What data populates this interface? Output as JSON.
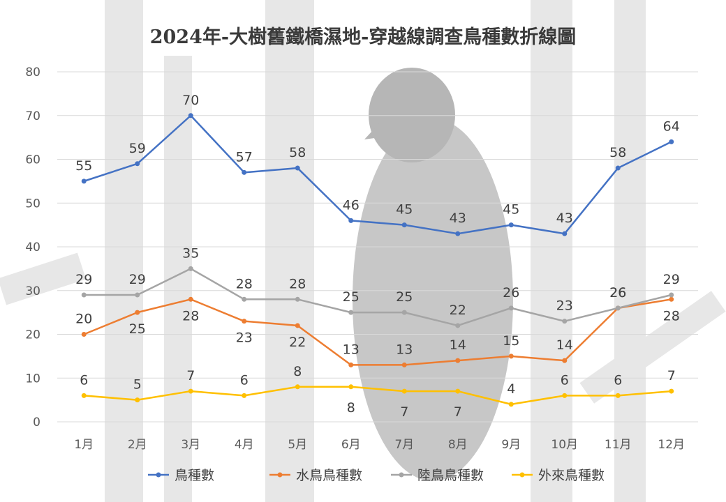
{
  "chart_data": {
    "type": "line",
    "title": "2024年-大樹舊鐵橋濕地-穿越線調查鳥種數折線圖",
    "xlabel": "",
    "ylabel": "",
    "categories": [
      "1月",
      "2月",
      "3月",
      "4月",
      "5月",
      "6月",
      "7月",
      "8月",
      "9月",
      "10月",
      "11月",
      "12月"
    ],
    "ylim": [
      0,
      80
    ],
    "yticks": [
      0,
      10,
      20,
      30,
      40,
      50,
      60,
      70,
      80
    ],
    "grid": true,
    "legend": "bottom",
    "series": [
      {
        "name": "鳥種數",
        "color": "#4472C4",
        "values": [
          55,
          59,
          70,
          57,
          58,
          46,
          45,
          43,
          45,
          43,
          58,
          64
        ]
      },
      {
        "name": "水鳥鳥種數",
        "color": "#ED7D31",
        "values": [
          20,
          25,
          28,
          23,
          22,
          13,
          13,
          14,
          15,
          14,
          26,
          28
        ]
      },
      {
        "name": "陸鳥鳥種數",
        "color": "#A5A5A5",
        "values": [
          29,
          29,
          35,
          28,
          28,
          25,
          25,
          22,
          26,
          23,
          26,
          29
        ]
      },
      {
        "name": "外來鳥種數",
        "color": "#FFC000",
        "values": [
          6,
          5,
          7,
          6,
          8,
          8,
          7,
          7,
          4,
          6,
          6,
          7
        ]
      }
    ]
  }
}
